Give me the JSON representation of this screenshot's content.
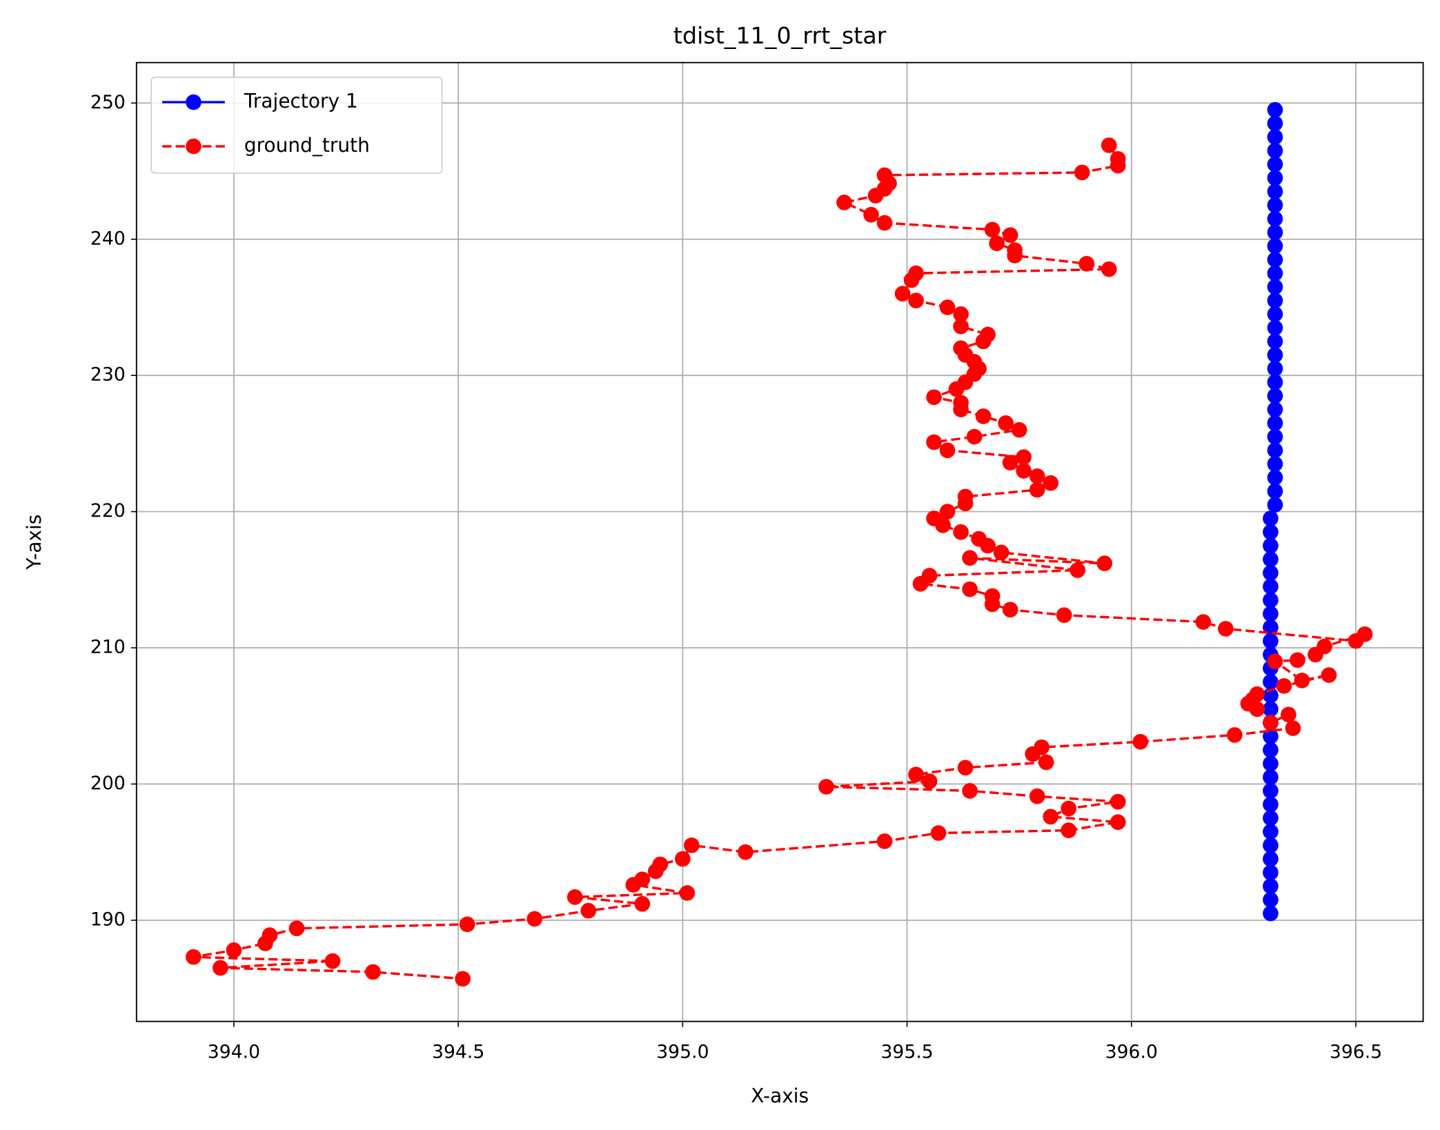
{
  "chart_data": {
    "type": "line",
    "title": "tdist_11_0_rrt_star",
    "x_label": "X-axis",
    "y_label": "Y-axis",
    "xlim": [
      393.783,
      396.65
    ],
    "ylim": [
      182.57,
      252.97
    ],
    "xticks": [
      {
        "value": 394,
        "label": "394.0"
      },
      394.5,
      {
        "value": 395,
        "label": "395.0"
      },
      395.5,
      {
        "value": 396,
        "label": "396.0"
      },
      396.5
    ],
    "yticks": [
      190,
      200,
      210,
      220,
      230,
      240,
      250
    ],
    "grid": true,
    "legend": "upper left",
    "series": [
      {
        "name": "Trajectory 1",
        "color": "#0000ff",
        "linestyle": "solid",
        "marker": "o",
        "x": [
          396.31,
          396.31,
          396.31,
          396.31,
          396.31,
          396.31,
          396.31,
          396.31,
          396.31,
          396.31,
          396.31,
          396.31,
          396.31,
          396.31,
          396.31,
          396.31,
          396.31,
          396.31,
          396.31,
          396.31,
          396.31,
          396.31,
          396.31,
          396.31,
          396.31,
          396.31,
          396.31,
          396.31,
          396.31,
          396.31,
          396.32,
          396.32,
          396.32,
          396.32,
          396.32,
          396.32,
          396.32,
          396.32,
          396.32,
          396.32,
          396.32,
          396.32,
          396.32,
          396.32,
          396.32,
          396.32,
          396.32,
          396.32,
          396.32,
          396.32,
          396.32,
          396.32,
          396.32,
          396.32,
          396.32,
          396.32,
          396.32,
          396.32,
          396.32,
          396.32
        ],
        "y": [
          190.5,
          191.5,
          192.5,
          193.5,
          194.5,
          195.5,
          196.5,
          197.5,
          198.5,
          199.5,
          200.5,
          201.5,
          202.5,
          203.5,
          204.5,
          205.5,
          206.5,
          207.5,
          208.5,
          209.5,
          210.5,
          211.5,
          212.5,
          213.5,
          214.5,
          215.5,
          216.5,
          217.5,
          218.5,
          219.5,
          220.5,
          221.5,
          222.5,
          223.5,
          224.5,
          225.5,
          226.5,
          227.5,
          228.5,
          229.5,
          230.5,
          231.5,
          232.5,
          233.5,
          234.5,
          235.5,
          236.5,
          237.5,
          238.5,
          239.5,
          240.5,
          241.5,
          242.5,
          243.5,
          244.5,
          245.5,
          246.5,
          247.5,
          248.5,
          249.5
        ]
      },
      {
        "name": "ground_truth",
        "color": "#ff0000",
        "linestyle": "dashed",
        "marker": "o",
        "x": [
          395.95,
          395.97,
          395.97,
          395.89,
          395.45,
          395.46,
          395.45,
          395.43,
          395.36,
          395.42,
          395.45,
          395.69,
          395.73,
          395.7,
          395.74,
          395.74,
          395.9,
          395.95,
          395.52,
          395.51,
          395.49,
          395.52,
          395.59,
          395.62,
          395.62,
          395.68,
          395.67,
          395.62,
          395.63,
          395.65,
          395.66,
          395.65,
          395.63,
          395.61,
          395.56,
          395.62,
          395.62,
          395.67,
          395.72,
          395.75,
          395.65,
          395.56,
          395.59,
          395.76,
          395.73,
          395.76,
          395.79,
          395.82,
          395.79,
          395.63,
          395.63,
          395.59,
          395.56,
          395.58,
          395.62,
          395.66,
          395.68,
          395.71,
          395.94,
          395.64,
          395.88,
          395.55,
          395.53,
          395.64,
          395.69,
          395.69,
          395.73,
          395.85,
          396.16,
          396.21,
          396.5,
          396.52,
          396.43,
          396.41,
          396.37,
          396.32,
          396.38,
          396.44,
          396.34,
          396.28,
          396.27,
          396.26,
          396.28,
          396.31,
          396.35,
          396.36,
          396.23,
          396.02,
          395.8,
          395.78,
          395.81,
          395.63,
          395.52,
          395.55,
          395.32,
          395.64,
          395.79,
          395.97,
          395.86,
          395.82,
          395.97,
          395.86,
          395.57,
          395.45,
          395.14,
          395.02,
          395.0,
          394.95,
          394.94,
          394.91,
          394.89,
          395.01,
          394.76,
          394.91,
          394.79,
          394.67,
          394.52,
          394.14,
          394.08,
          394.07,
          394.0,
          393.91,
          394.22,
          393.97,
          394.31,
          394.51
        ],
        "y": [
          246.9,
          245.9,
          245.4,
          244.9,
          244.7,
          244.1,
          243.7,
          243.2,
          242.7,
          241.8,
          241.2,
          240.7,
          240.3,
          239.7,
          239.2,
          238.8,
          238.2,
          237.8,
          237.5,
          237.0,
          236.0,
          235.5,
          235.0,
          234.5,
          233.6,
          233.0,
          232.5,
          232.0,
          231.5,
          231.0,
          230.5,
          230.1,
          229.5,
          229.0,
          228.4,
          228.0,
          227.5,
          227.0,
          226.5,
          226.0,
          225.5,
          225.1,
          224.5,
          224.0,
          223.6,
          223.0,
          222.6,
          222.1,
          221.6,
          221.1,
          220.6,
          220.0,
          219.5,
          219.0,
          218.5,
          218.0,
          217.5,
          217.0,
          216.2,
          216.6,
          215.7,
          215.3,
          214.7,
          214.3,
          213.8,
          213.2,
          212.8,
          212.4,
          211.9,
          211.4,
          210.5,
          211.0,
          210.1,
          209.5,
          209.1,
          209.0,
          207.6,
          208.0,
          207.2,
          206.6,
          206.2,
          205.9,
          205.5,
          204.5,
          205.1,
          204.1,
          203.6,
          203.1,
          202.7,
          202.2,
          201.6,
          201.2,
          200.7,
          200.2,
          199.8,
          199.5,
          199.1,
          198.7,
          198.2,
          197.6,
          197.2,
          196.6,
          196.4,
          195.8,
          195.0,
          195.5,
          194.5,
          194.1,
          193.6,
          193.0,
          192.6,
          192.0,
          191.7,
          191.2,
          190.7,
          190.1,
          189.7,
          189.4,
          188.9,
          188.3,
          187.8,
          187.3,
          187.0,
          186.5,
          186.2,
          185.7
        ]
      }
    ]
  }
}
